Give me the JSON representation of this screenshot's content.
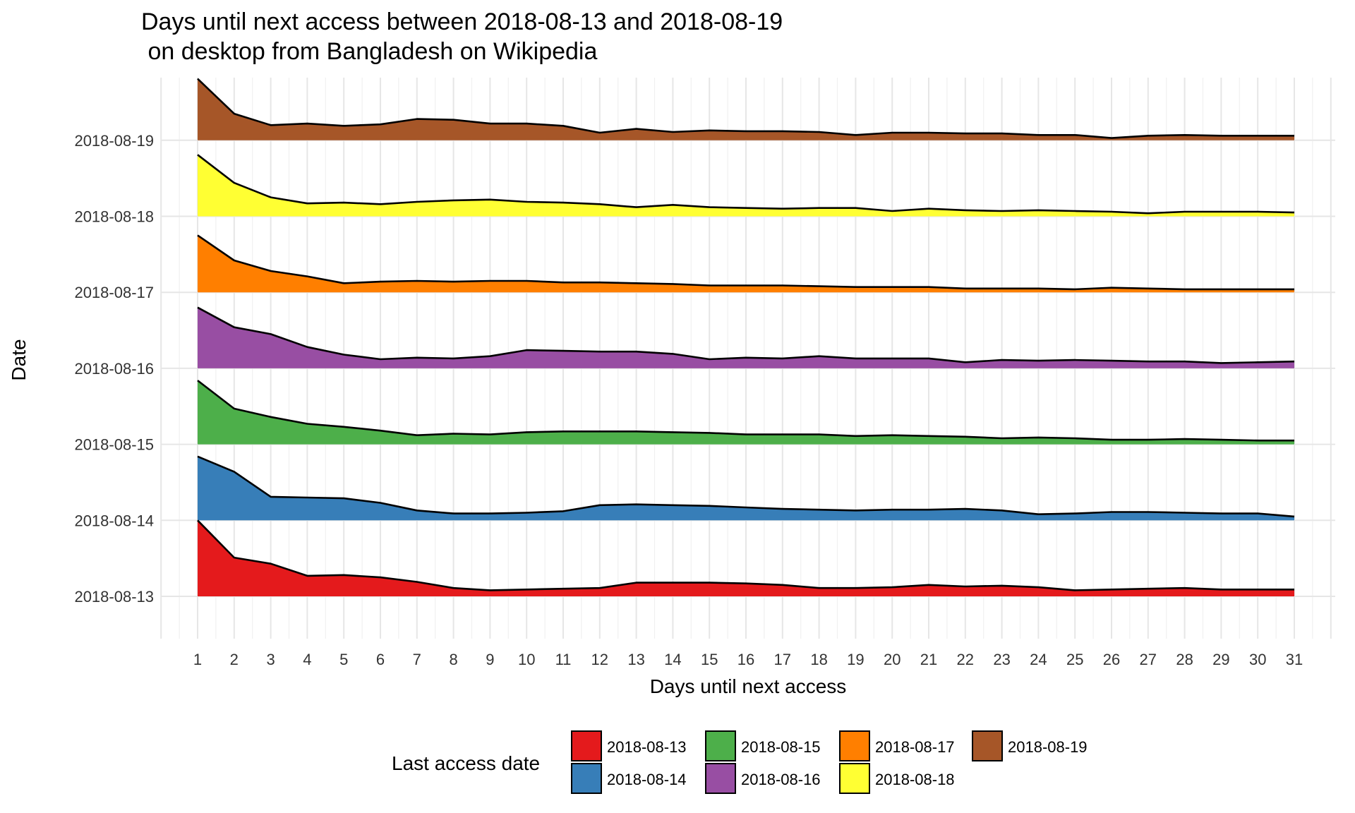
{
  "chart_data": {
    "type": "area",
    "title_line1": "Days until next access between 2018-08-13 and 2018-08-19",
    "title_line2": " on desktop from Bangladesh on Wikipedia",
    "xlabel": "Days until next access",
    "ylabel": "Date",
    "x": [
      1,
      2,
      3,
      4,
      5,
      6,
      7,
      8,
      9,
      10,
      11,
      12,
      13,
      14,
      15,
      16,
      17,
      18,
      19,
      20,
      21,
      22,
      23,
      24,
      25,
      26,
      27,
      28,
      29,
      30,
      31
    ],
    "xlim": [
      0,
      32
    ],
    "y_categories": [
      "2018-08-13",
      "2018-08-14",
      "2018-08-15",
      "2018-08-16",
      "2018-08-17",
      "2018-08-18",
      "2018-08-19"
    ],
    "ridge_scale": "height relative to one category spacing",
    "grid": true,
    "legend": {
      "title": "Last access date",
      "position": "bottom",
      "entries": [
        "2018-08-13",
        "2018-08-14",
        "2018-08-15",
        "2018-08-16",
        "2018-08-17",
        "2018-08-18",
        "2018-08-19"
      ]
    },
    "series": [
      {
        "name": "2018-08-13",
        "color": "#E41A1C",
        "values": [
          1.0,
          0.51,
          0.43,
          0.27,
          0.28,
          0.25,
          0.19,
          0.11,
          0.08,
          0.09,
          0.1,
          0.11,
          0.18,
          0.18,
          0.18,
          0.17,
          0.15,
          0.11,
          0.11,
          0.12,
          0.15,
          0.13,
          0.14,
          0.12,
          0.08,
          0.09,
          0.1,
          0.11,
          0.09,
          0.09,
          0.09
        ]
      },
      {
        "name": "2018-08-14",
        "color": "#377EB8",
        "values": [
          0.84,
          0.64,
          0.31,
          0.3,
          0.29,
          0.23,
          0.13,
          0.09,
          0.09,
          0.1,
          0.12,
          0.2,
          0.21,
          0.2,
          0.19,
          0.17,
          0.15,
          0.14,
          0.13,
          0.14,
          0.14,
          0.15,
          0.13,
          0.08,
          0.09,
          0.11,
          0.11,
          0.1,
          0.09,
          0.09,
          0.05
        ]
      },
      {
        "name": "2018-08-15",
        "color": "#4DAF4A",
        "values": [
          0.84,
          0.47,
          0.36,
          0.27,
          0.23,
          0.18,
          0.12,
          0.14,
          0.13,
          0.16,
          0.17,
          0.17,
          0.17,
          0.16,
          0.15,
          0.13,
          0.13,
          0.13,
          0.11,
          0.12,
          0.11,
          0.1,
          0.08,
          0.09,
          0.08,
          0.06,
          0.06,
          0.07,
          0.06,
          0.05,
          0.05
        ]
      },
      {
        "name": "2018-08-16",
        "color": "#984EA3",
        "values": [
          0.8,
          0.54,
          0.45,
          0.28,
          0.18,
          0.12,
          0.14,
          0.13,
          0.16,
          0.24,
          0.23,
          0.22,
          0.22,
          0.19,
          0.12,
          0.14,
          0.13,
          0.16,
          0.13,
          0.13,
          0.13,
          0.08,
          0.11,
          0.1,
          0.11,
          0.1,
          0.09,
          0.09,
          0.07,
          0.08,
          0.09
        ]
      },
      {
        "name": "2018-08-17",
        "color": "#FF7F00",
        "values": [
          0.75,
          0.42,
          0.28,
          0.21,
          0.12,
          0.14,
          0.15,
          0.14,
          0.15,
          0.15,
          0.13,
          0.13,
          0.12,
          0.11,
          0.09,
          0.09,
          0.09,
          0.08,
          0.07,
          0.07,
          0.07,
          0.05,
          0.05,
          0.05,
          0.04,
          0.06,
          0.05,
          0.04,
          0.04,
          0.04,
          0.04
        ]
      },
      {
        "name": "2018-08-18",
        "color": "#FFFF33",
        "values": [
          0.81,
          0.44,
          0.25,
          0.17,
          0.18,
          0.16,
          0.19,
          0.21,
          0.22,
          0.19,
          0.18,
          0.16,
          0.12,
          0.15,
          0.12,
          0.11,
          0.1,
          0.11,
          0.11,
          0.07,
          0.1,
          0.08,
          0.07,
          0.08,
          0.07,
          0.06,
          0.04,
          0.06,
          0.06,
          0.06,
          0.05
        ]
      },
      {
        "name": "2018-08-19",
        "color": "#A65628",
        "values": [
          0.81,
          0.35,
          0.2,
          0.22,
          0.19,
          0.21,
          0.28,
          0.27,
          0.22,
          0.22,
          0.19,
          0.1,
          0.15,
          0.11,
          0.13,
          0.12,
          0.12,
          0.11,
          0.07,
          0.1,
          0.1,
          0.09,
          0.09,
          0.07,
          0.07,
          0.03,
          0.06,
          0.07,
          0.06,
          0.06,
          0.06
        ]
      }
    ]
  }
}
